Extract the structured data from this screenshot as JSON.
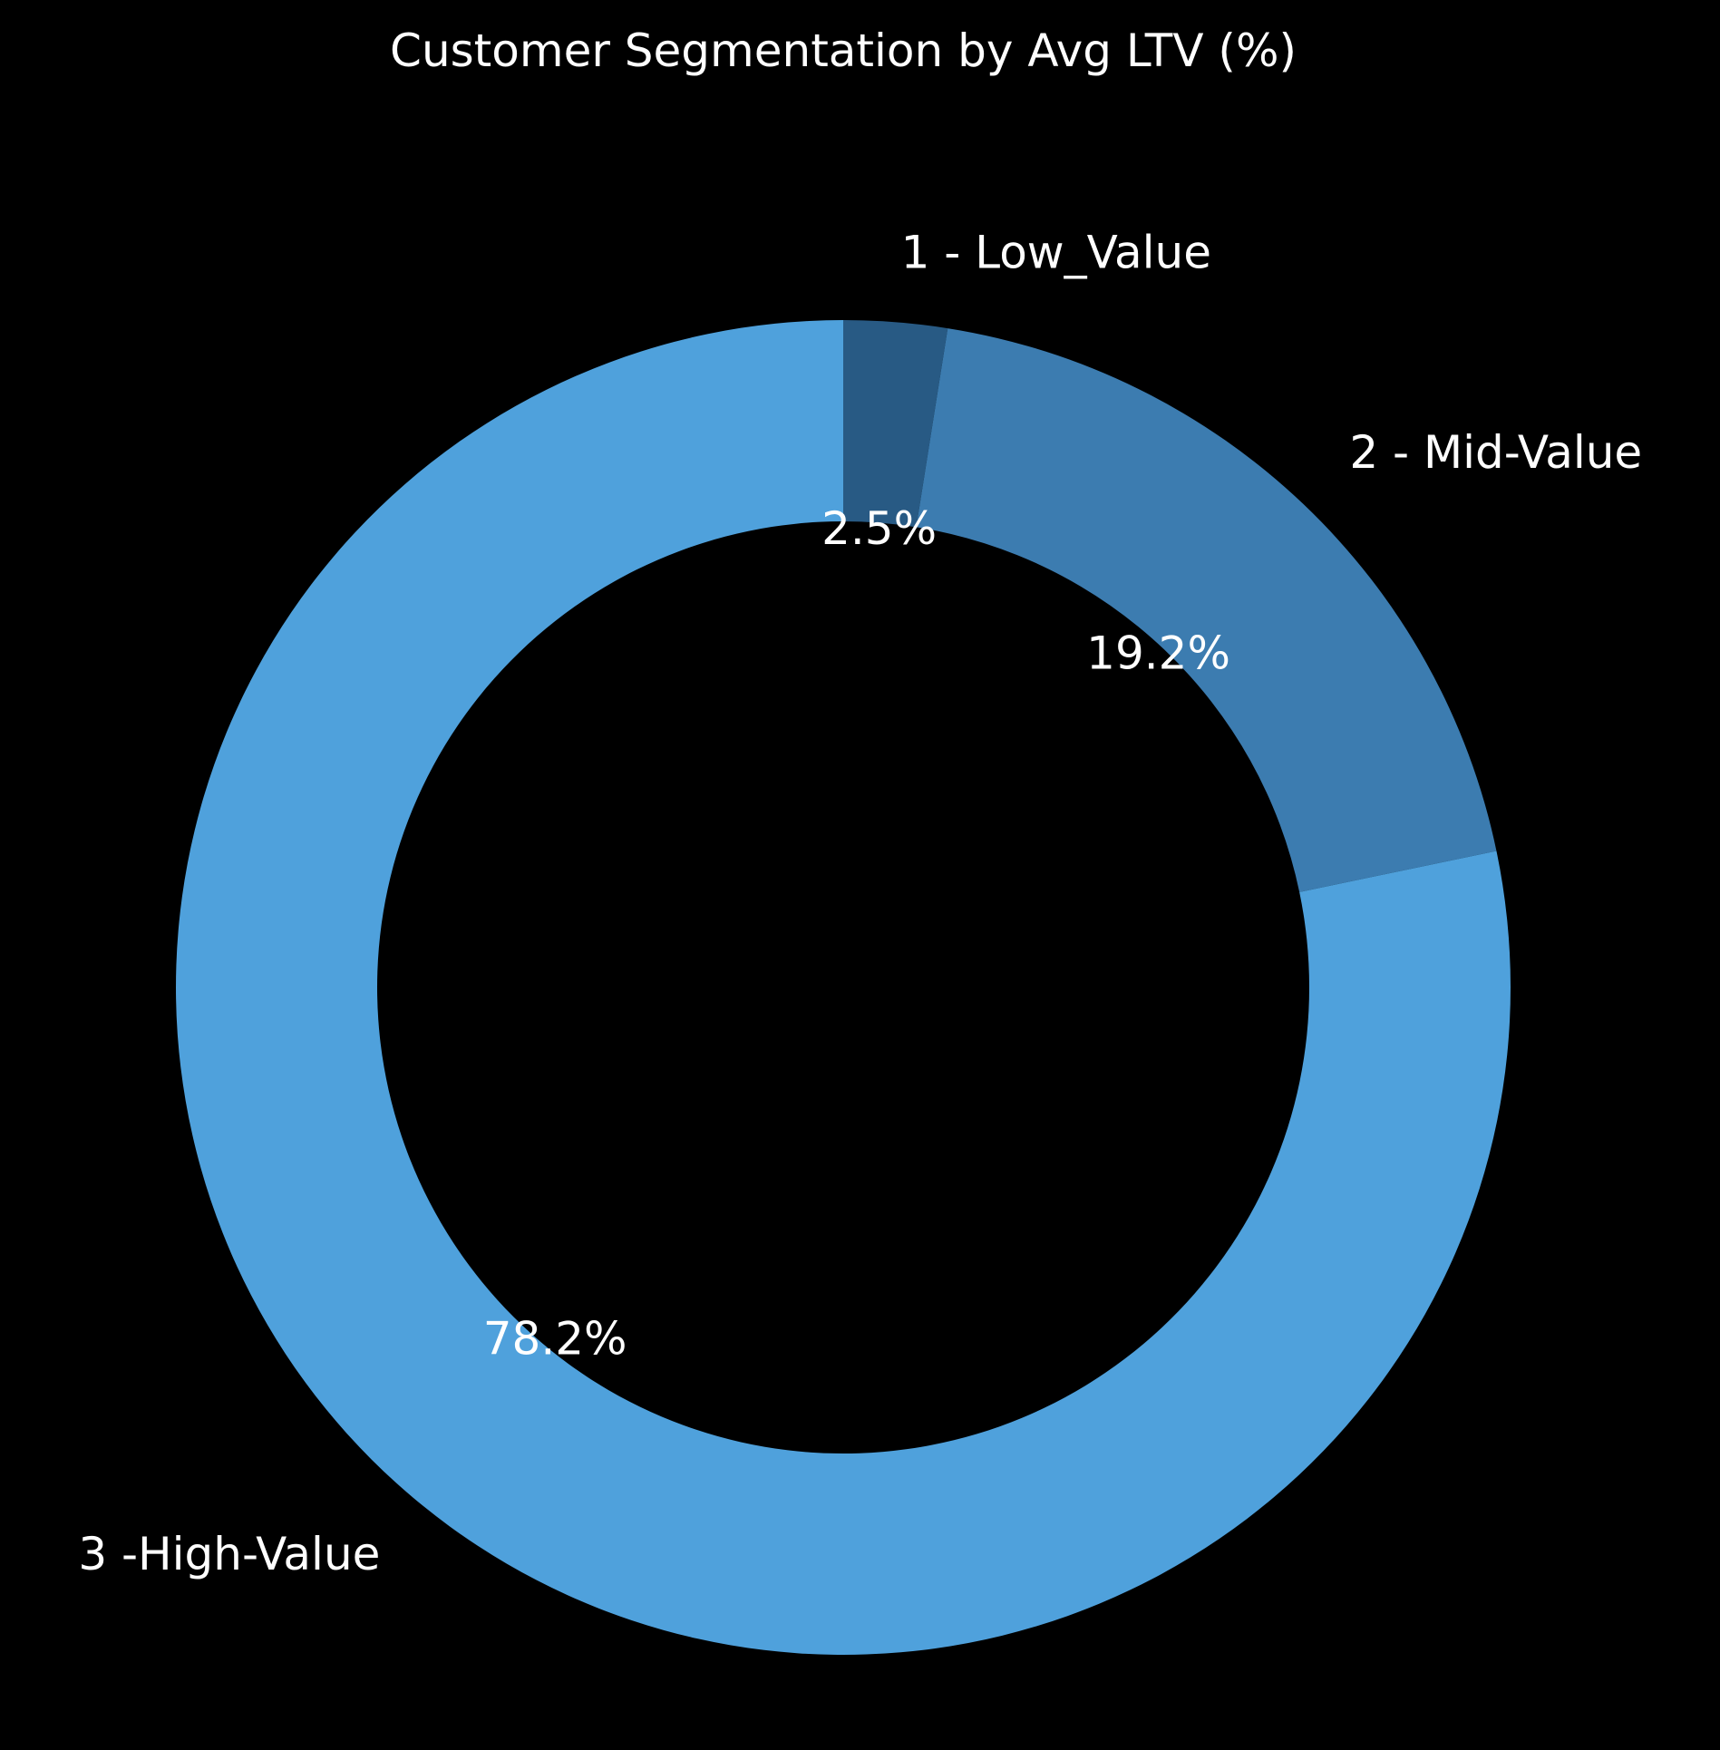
{
  "chart_data": {
    "type": "pie",
    "variant": "donut",
    "title": "Customer Segmentation by Avg LTV (%)",
    "categories": [
      "1 - Low_Value",
      "2 - Mid-Value",
      "3 -High-Value"
    ],
    "values": [
      2.5,
      19.2,
      78.2
    ],
    "value_labels": [
      "2.5%",
      "19.2%",
      "78.2%"
    ],
    "colors": [
      "#285a84",
      "#3c7cb0",
      "#4fa1dc"
    ],
    "start_angle_deg": 90,
    "direction": "clockwise",
    "background": "#000000",
    "text_color": "#ffffff",
    "legend": "none",
    "grid": false
  }
}
